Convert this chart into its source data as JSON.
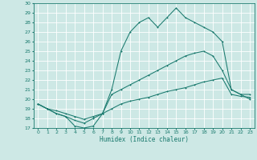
{
  "title": "",
  "xlabel": "Humidex (Indice chaleur)",
  "ylabel": "",
  "xlim": [
    -0.5,
    23.5
  ],
  "ylim": [
    17,
    30
  ],
  "xticks": [
    0,
    1,
    2,
    3,
    4,
    5,
    6,
    7,
    8,
    9,
    10,
    11,
    12,
    13,
    14,
    15,
    16,
    17,
    18,
    19,
    20,
    21,
    22,
    23
  ],
  "yticks": [
    17,
    18,
    19,
    20,
    21,
    22,
    23,
    24,
    25,
    26,
    27,
    28,
    29,
    30
  ],
  "bg_color": "#cde8e5",
  "grid_color": "#b0d8d4",
  "line_color": "#1a7a6e",
  "line1_x": [
    0,
    1,
    2,
    3,
    4,
    5,
    6,
    7,
    8,
    9,
    10,
    11,
    12,
    13,
    14,
    15,
    16,
    17,
    18,
    19,
    20,
    21,
    22,
    23
  ],
  "line1_y": [
    19.5,
    19.0,
    18.5,
    18.2,
    17.2,
    17.0,
    17.2,
    18.5,
    21.0,
    25.0,
    27.0,
    28.0,
    28.5,
    27.5,
    28.5,
    29.5,
    28.5,
    28.0,
    27.5,
    27.0,
    26.0,
    21.0,
    20.5,
    20.0
  ],
  "line2_x": [
    0,
    1,
    2,
    3,
    4,
    5,
    6,
    7,
    8,
    9,
    10,
    11,
    12,
    13,
    14,
    15,
    16,
    17,
    18,
    19,
    20,
    21,
    22,
    23
  ],
  "line2_y": [
    19.5,
    19.0,
    18.5,
    18.2,
    17.8,
    17.5,
    18.0,
    18.5,
    20.5,
    21.0,
    21.5,
    22.0,
    22.5,
    23.0,
    23.5,
    24.0,
    24.5,
    24.8,
    25.0,
    24.5,
    23.0,
    21.0,
    20.5,
    20.5
  ],
  "line3_x": [
    0,
    1,
    2,
    3,
    4,
    5,
    6,
    7,
    8,
    9,
    10,
    11,
    12,
    13,
    14,
    15,
    16,
    17,
    18,
    19,
    20,
    21,
    22,
    23
  ],
  "line3_y": [
    19.5,
    19.0,
    18.8,
    18.5,
    18.2,
    17.9,
    18.2,
    18.5,
    19.0,
    19.5,
    19.8,
    20.0,
    20.2,
    20.5,
    20.8,
    21.0,
    21.2,
    21.5,
    21.8,
    22.0,
    22.2,
    20.5,
    20.3,
    20.2
  ],
  "tick_fontsize": 4.5,
  "xlabel_fontsize": 5.5
}
